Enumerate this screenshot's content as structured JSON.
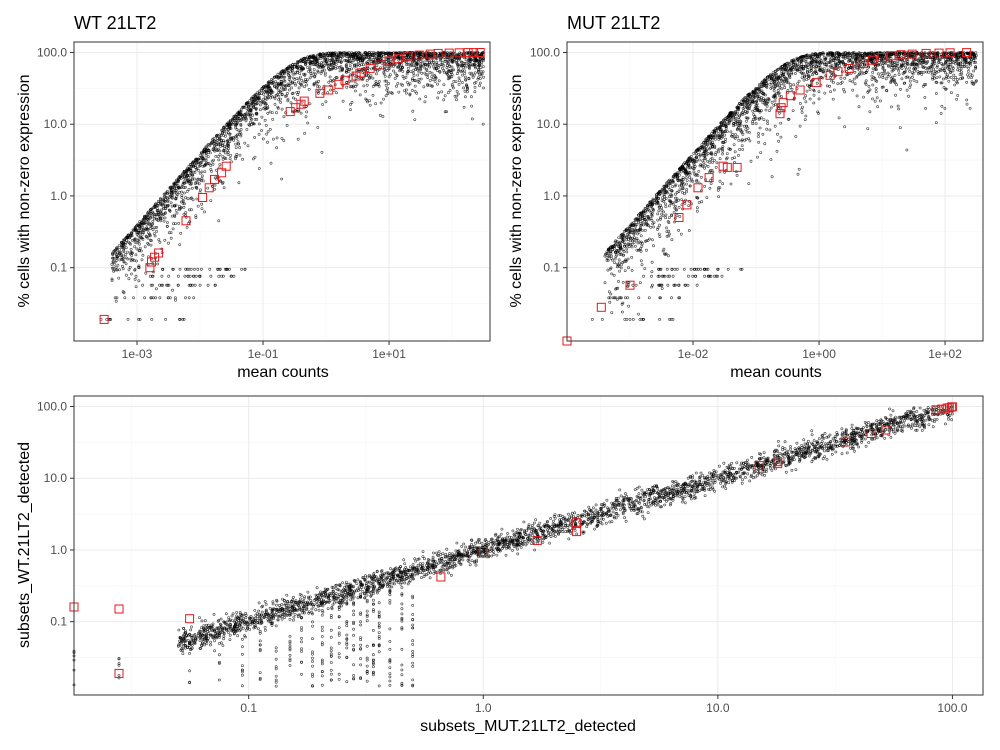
{
  "colors": {
    "points": "#000000",
    "highlight": "#e31a1c",
    "grid": "#ebebeb",
    "panel_border": "#333333"
  },
  "chart_data": [
    {
      "id": "wt",
      "type": "scatter",
      "title": "WT 21LT2",
      "xlabel": "mean counts",
      "ylabel": "% cells with non-zero expression",
      "x_scale": "log10",
      "y_scale": "log10",
      "xlim": [
        0.0001,
        400
      ],
      "ylim": [
        0.0095,
        140
      ],
      "x_ticks": [
        {
          "value": 0.001,
          "label": "1e-03"
        },
        {
          "value": 0.1,
          "label": "1e-01"
        },
        {
          "value": 10,
          "label": "1e+01"
        }
      ],
      "y_ticks": [
        {
          "value": 0.1,
          "label": "0.1"
        },
        {
          "value": 1,
          "label": "1.0"
        },
        {
          "value": 10,
          "label": "10.0"
        },
        {
          "value": 100,
          "label": "100.0"
        }
      ],
      "grid": true,
      "highlight_marker": "open-square",
      "highlighted": [
        [
          0.0003,
          0.019
        ],
        [
          0.0016,
          0.1
        ],
        [
          0.0017,
          0.12
        ],
        [
          0.0019,
          0.14
        ],
        [
          0.0022,
          0.16
        ],
        [
          0.006,
          0.45
        ],
        [
          0.011,
          0.95
        ],
        [
          0.014,
          1.3
        ],
        [
          0.017,
          1.7
        ],
        [
          0.022,
          2.1
        ],
        [
          0.026,
          2.6
        ],
        [
          0.27,
          15
        ],
        [
          0.33,
          17
        ],
        [
          0.4,
          19
        ],
        [
          0.45,
          21
        ],
        [
          0.8,
          27
        ],
        [
          1.1,
          30
        ],
        [
          1.6,
          36
        ],
        [
          2.0,
          41
        ],
        [
          3.0,
          47
        ],
        [
          3.6,
          52
        ],
        [
          5,
          60
        ],
        [
          7,
          67
        ],
        [
          10,
          76
        ],
        [
          14,
          82
        ],
        [
          20,
          87
        ],
        [
          30,
          92
        ],
        [
          45,
          95
        ],
        [
          60,
          97
        ],
        [
          90,
          98
        ],
        [
          130,
          99
        ],
        [
          180,
          99.5
        ],
        [
          220,
          99.7
        ],
        [
          280,
          99.8
        ]
      ]
    },
    {
      "id": "mut",
      "type": "scatter",
      "title": "MUT 21LT2",
      "xlabel": "mean counts",
      "ylabel": "% cells with non-zero expression",
      "x_scale": "log10",
      "y_scale": "log10",
      "xlim": [
        0.0001,
        400
      ],
      "ylim": [
        0.0095,
        140
      ],
      "x_ticks": [
        {
          "value": 0.01,
          "label": "1e-02"
        },
        {
          "value": 1,
          "label": "1e+00"
        },
        {
          "value": 100,
          "label": "1e+02"
        }
      ],
      "y_ticks": [
        {
          "value": 0.1,
          "label": "0.1"
        },
        {
          "value": 1,
          "label": "1.0"
        },
        {
          "value": 10,
          "label": "10.0"
        },
        {
          "value": 100,
          "label": "100.0"
        }
      ],
      "grid": true,
      "highlight_marker": "open-square",
      "highlighted": [
        [
          0.0001,
          0.0095
        ],
        [
          0.00035,
          0.028
        ],
        [
          0.001,
          0.057
        ],
        [
          0.006,
          0.5
        ],
        [
          0.008,
          0.75
        ],
        [
          0.012,
          1.3
        ],
        [
          0.018,
          1.8
        ],
        [
          0.03,
          2.6
        ],
        [
          0.035,
          2.5
        ],
        [
          0.05,
          2.5
        ],
        [
          0.24,
          14
        ],
        [
          0.25,
          17
        ],
        [
          0.27,
          20
        ],
        [
          0.35,
          25
        ],
        [
          0.5,
          30
        ],
        [
          0.9,
          38
        ],
        [
          1.5,
          48
        ],
        [
          2,
          54
        ],
        [
          3,
          60
        ],
        [
          5,
          70
        ],
        [
          7,
          78
        ],
        [
          10,
          85
        ],
        [
          14,
          90
        ],
        [
          20,
          93
        ],
        [
          30,
          95
        ],
        [
          50,
          97
        ],
        [
          80,
          98
        ],
        [
          120,
          99
        ],
        [
          220,
          99.6
        ]
      ]
    },
    {
      "id": "compare",
      "type": "scatter",
      "title": "",
      "xlabel": "subsets_MUT.21LT2_detected",
      "ylabel": "subsets_WT.21LT2_detected",
      "x_scale": "log10",
      "y_scale": "log10",
      "xlim": [
        0.018,
        135
      ],
      "ylim": [
        0.0095,
        140
      ],
      "x_ticks": [
        {
          "value": 0.1,
          "label": "0.1"
        },
        {
          "value": 1,
          "label": "1.0"
        },
        {
          "value": 10,
          "label": "10.0"
        },
        {
          "value": 100,
          "label": "100.0"
        }
      ],
      "y_ticks": [
        {
          "value": 0.1,
          "label": "0.1"
        },
        {
          "value": 1,
          "label": "1.0"
        },
        {
          "value": 10,
          "label": "10.0"
        },
        {
          "value": 100,
          "label": "100.0"
        }
      ],
      "grid": true,
      "highlight_marker": "open-square",
      "highlighted": [
        [
          0.018,
          0.16
        ],
        [
          0.028,
          0.15
        ],
        [
          0.028,
          0.019
        ],
        [
          0.056,
          0.11
        ],
        [
          0.66,
          0.42
        ],
        [
          1.0,
          0.95
        ],
        [
          1.7,
          1.35
        ],
        [
          2.5,
          2.4
        ],
        [
          2.5,
          1.8
        ],
        [
          15,
          15
        ],
        [
          18,
          17
        ],
        [
          18,
          16
        ],
        [
          35,
          32
        ],
        [
          45,
          42
        ],
        [
          52,
          47
        ],
        [
          85,
          90
        ],
        [
          90,
          92
        ],
        [
          95,
          95
        ],
        [
          97,
          96
        ],
        [
          99,
          98
        ],
        [
          100,
          99
        ]
      ]
    }
  ]
}
